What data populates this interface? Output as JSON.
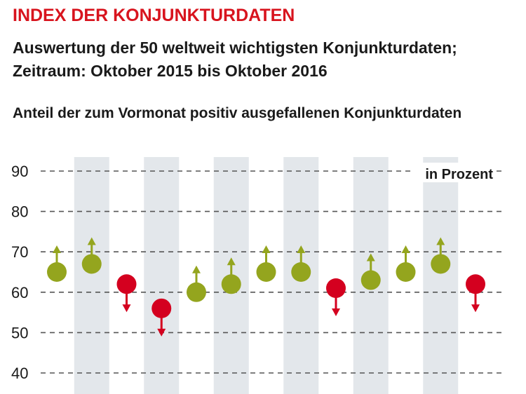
{
  "header": {
    "title": "INDEX DER KONJUNKTURDATEN",
    "subtitle_line1": "Auswertung der 50 weltweit wichtigsten Konjunkturdaten;",
    "subtitle_line2": "Zeitraum: Oktober 2015 bis Oktober 2016",
    "chart_heading": "Anteil der zum Vormonat positiv ausgefallenen Konjunkturdaten"
  },
  "colors": {
    "positive": "#94a51e",
    "negative": "#d4001f",
    "band": "#e3e7eb",
    "grid": "#555555"
  },
  "chart_data": {
    "type": "scatter",
    "title": "Anteil der zum Vormonat positiv ausgefallenen Konjunkturdaten",
    "unit_label": "in Prozent",
    "ylim": [
      40,
      90
    ],
    "yticks": [
      "90",
      "80",
      "70",
      "60",
      "50",
      "40"
    ],
    "grid": true,
    "points": [
      {
        "value": 65,
        "direction": "up"
      },
      {
        "value": 67,
        "direction": "up"
      },
      {
        "value": 62,
        "direction": "down"
      },
      {
        "value": 56,
        "direction": "down"
      },
      {
        "value": 60,
        "direction": "up"
      },
      {
        "value": 62,
        "direction": "up"
      },
      {
        "value": 65,
        "direction": "up"
      },
      {
        "value": 65,
        "direction": "up"
      },
      {
        "value": 61,
        "direction": "down"
      },
      {
        "value": 63,
        "direction": "up"
      },
      {
        "value": 65,
        "direction": "up"
      },
      {
        "value": 67,
        "direction": "up"
      },
      {
        "value": 62,
        "direction": "down"
      }
    ]
  }
}
